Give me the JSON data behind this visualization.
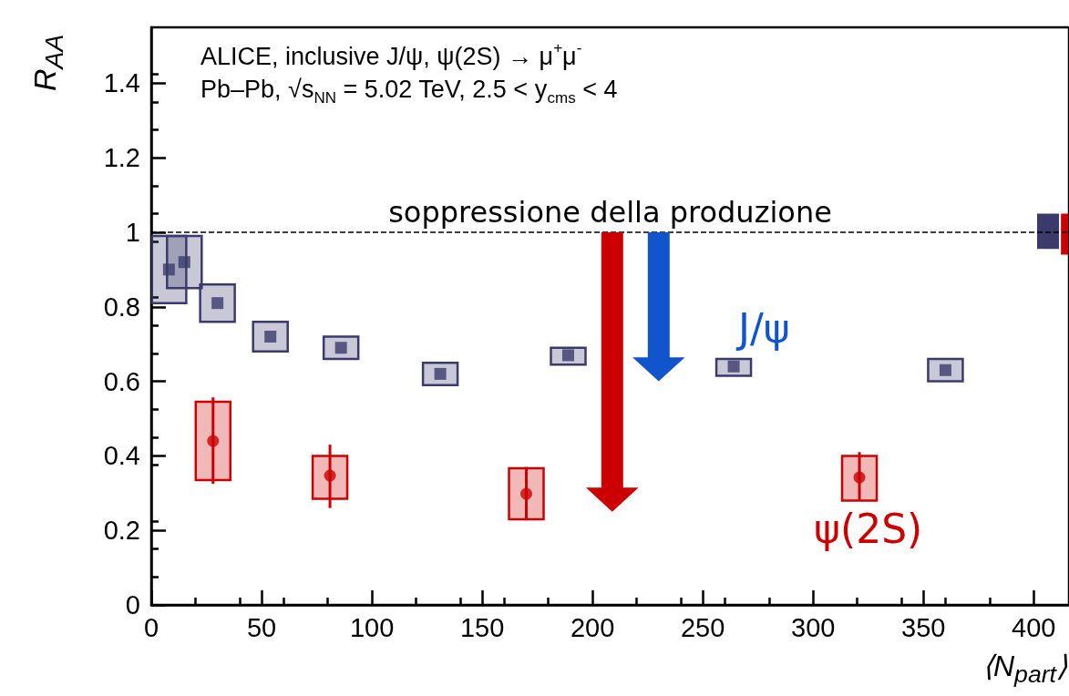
{
  "chart_data": {
    "type": "scatter",
    "title": "ALICE, inclusive J/ψ, ψ(2S) → μ$^{+}$μ$^{-}$",
    "subtitle": "Pb–Pb, √s$_{NN}$ = 5.02 TeV, 2.5 < y$_{cms}$ < 4",
    "xlabel": "⟨N$_{part}$⟩",
    "ylabel": "R$_{AA}$",
    "xlim": [
      0,
      416
    ],
    "xticks": [
      0,
      50,
      100,
      150,
      200,
      250,
      300,
      350,
      400
    ],
    "ylim": [
      0,
      1.55
    ],
    "yticks": [
      0,
      0.2,
      0.4,
      0.6,
      0.8,
      1,
      1.2,
      1.4
    ],
    "grid": false,
    "series": [
      {
        "type": "bar",
        "color": "#3b3b6b",
        "x": [
          8,
          15,
          30,
          54,
          86,
          131,
          189,
          264,
          360
        ],
        "base": [
          0.81,
          0.85,
          0.76,
          0.68,
          0.66,
          0.59,
          0.645,
          0.615,
          0.6
        ],
        "values": [
          0.18,
          0.14,
          0.1,
          0.08,
          0.06,
          0.06,
          0.045,
          0.045,
          0.06
        ]
      },
      {
        "type": "bar",
        "color": "#cc0000",
        "x": [
          28,
          81,
          170,
          321
        ],
        "base": [
          0.335,
          0.285,
          0.23,
          0.28
        ],
        "values": [
          0.21,
          0.115,
          0.137,
          0.12
        ]
      },
      {
        "type": "bar",
        "colors": [
          "#3b3b6b",
          "#cc0000"
        ],
        "x": [
          406.5,
          414
        ],
        "base": [
          0.955,
          0.94
        ],
        "values": [
          0.095,
          0.11
        ]
      },
      {
        "marker": "square",
        "color": "#3b3b6b",
        "x": [
          8,
          15,
          30,
          54,
          86,
          131,
          189,
          264,
          360
        ],
        "values": [
          0.9,
          0.92,
          0.81,
          0.72,
          0.69,
          0.62,
          0.67,
          0.64,
          0.63
        ]
      },
      {
        "marker": "circle",
        "color": "#cc0000",
        "x": [
          28,
          81,
          170,
          321
        ],
        "values": [
          0.44,
          0.347,
          0.298,
          0.342
        ],
        "errors": [
          [
            0.325,
            0.557
          ],
          [
            0.26,
            0.43
          ],
          [
            0.227,
            0.37
          ],
          [
            0.28,
            0.41
          ]
        ]
      }
    ],
    "ref_lines": [
      {
        "axis": "y",
        "value": 1,
        "label": "soppressione della produzione",
        "line_style": "dashed",
        "color": "#000000"
      }
    ],
    "annotations": [
      "J/ψ",
      "ψ(2S)"
    ]
  }
}
